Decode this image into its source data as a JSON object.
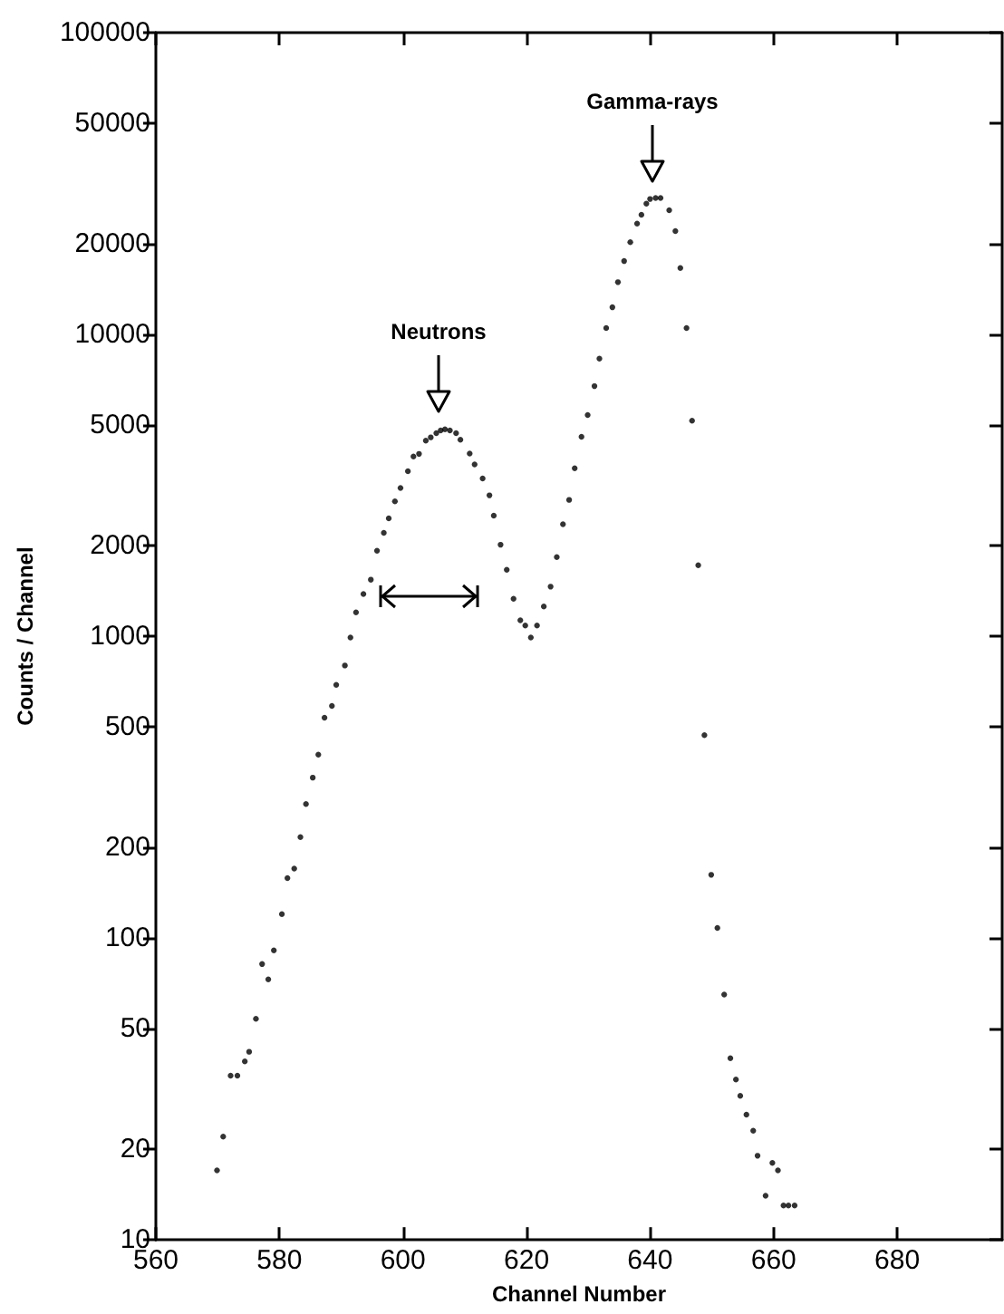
{
  "chart_data": {
    "type": "scatter",
    "xlabel": "Channel Number",
    "ylabel": "Counts / Channel",
    "x": [
      569.9,
      570.9,
      572.1,
      573.2,
      574.4,
      575.1,
      576.2,
      577.2,
      578.2,
      579.1,
      580.4,
      581.3,
      582.4,
      583.4,
      584.3,
      585.4,
      586.3,
      587.3,
      588.5,
      589.2,
      590.6,
      591.5,
      592.4,
      593.6,
      594.8,
      595.8,
      596.9,
      597.7,
      598.7,
      599.6,
      600.8,
      601.7,
      602.6,
      603.7,
      604.5,
      605.4,
      606.1,
      606.8,
      607.6,
      608.6,
      609.3,
      610.8,
      611.6,
      612.9,
      614.0,
      614.7,
      615.8,
      616.8,
      617.9,
      619.0,
      619.8,
      620.7,
      621.7,
      622.8,
      623.9,
      624.9,
      625.9,
      626.9,
      627.8,
      628.9,
      629.9,
      631.0,
      631.8,
      632.9,
      633.9,
      634.8,
      635.8,
      636.8,
      637.9,
      638.6,
      639.4,
      640.0,
      640.9,
      641.7,
      643.1,
      644.1,
      644.9,
      645.9,
      646.8,
      647.8,
      648.8,
      649.9,
      650.9,
      652.0,
      653.0,
      653.9,
      654.6,
      655.6,
      656.7,
      657.4,
      658.7,
      659.8,
      660.7,
      661.6,
      662.4,
      663.4
    ],
    "values": [
      17,
      22,
      35,
      35,
      39,
      42,
      54,
      82,
      73,
      91,
      120,
      158,
      170,
      216,
      278,
      340,
      405,
      537,
      588,
      690,
      800,
      990,
      1200,
      1380,
      1540,
      1920,
      2200,
      2460,
      2800,
      3100,
      3520,
      3940,
      4020,
      4450,
      4560,
      4710,
      4810,
      4850,
      4810,
      4710,
      4480,
      4030,
      3710,
      3330,
      2930,
      2510,
      2010,
      1660,
      1330,
      1130,
      1085,
      990,
      1085,
      1255,
      1460,
      1830,
      2350,
      2830,
      3600,
      4580,
      5410,
      6740,
      8310,
      10500,
      12300,
      14900,
      17500,
      20200,
      23300,
      24900,
      27100,
      28100,
      28300,
      28300,
      25800,
      22000,
      16600,
      10500,
      5180,
      1720,
      470,
      162,
      108,
      65,
      40,
      34,
      30,
      26,
      23,
      19,
      14,
      18,
      17,
      13,
      13,
      13
    ],
    "color": "#000000",
    "marker": "circle",
    "log": "y",
    "grid": false,
    "xlim": [
      560,
      697
    ],
    "xticks": [
      560,
      580,
      600,
      620,
      640,
      660,
      680
    ],
    "ylim": [
      10,
      100000
    ],
    "yticks": [
      10,
      20,
      50,
      100,
      200,
      500,
      1000,
      2000,
      5000,
      10000,
      20000,
      50000,
      100000
    ],
    "annotations": [
      "Neutrons",
      "Gamma-rays"
    ]
  }
}
